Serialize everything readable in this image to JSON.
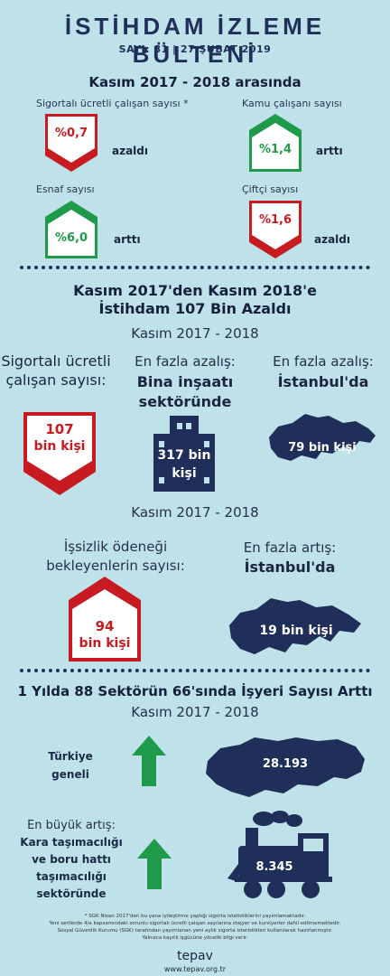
{
  "header": {
    "title": "İSTİHDAM İZLEME BÜLTENİ",
    "subtitle": "SAYI: 81 | 27 ŞUBAT 2019"
  },
  "section1": {
    "heading": "Kasım 2017 - 2018 arasında",
    "items": [
      {
        "label": "Sigortalı ücretli çalışan sayısı *",
        "value": "%0,7",
        "change": "azaldı",
        "direction": "down"
      },
      {
        "label": "Kamu çalışanı sayısı",
        "value": "%1,4",
        "change": "arttı",
        "direction": "up"
      },
      {
        "label": "Esnaf sayısı",
        "value": "%6,0",
        "change": "arttı",
        "direction": "up"
      },
      {
        "label": "Çiftçi sayısı",
        "value": "%1,6",
        "change": "azaldı",
        "direction": "down"
      }
    ]
  },
  "section2": {
    "heading_line1": "Kasım 2017'den Kasım 2018'e",
    "heading_line2": "İstihdam 107 Bin Azaldı",
    "period": "Kasım 2017 - 2018",
    "col1_line1": "Sigortalı ücretli",
    "col1_line2": "çalışan sayısı:",
    "col2_line1": "En fazla azalış:",
    "col2_line2": "Bina inşaatı",
    "col2_line3": "sektöründe",
    "col3_line1": "En fazla azalış:",
    "col3_line2": "İstanbul'da",
    "value1_line1": "107",
    "value1_line2": "bin kişi",
    "value2_line1": "317 bin",
    "value2_line2": "kişi",
    "value3": "79 bin kişi"
  },
  "section3": {
    "period": "Kasım 2017 - 2018",
    "left_line1": "İşsizlik ödeneği",
    "left_line2": "bekleyenlerin sayısı:",
    "right_line1": "En fazla artış:",
    "right_line2": "İstanbul'da",
    "value1_line1": "94",
    "value1_line2": "bin kişi",
    "value2": "19 bin kişi"
  },
  "section4": {
    "heading": "1 Yılda 88 Sektörün 66'sında İşyeri Sayısı Arttı",
    "period": "Kasım 2017 - 2018",
    "row1_line1": "Türkiye",
    "row1_line2": "geneli",
    "row1_value": "28.193",
    "row2_line1": "En büyük artış:",
    "row2_line2": "Kara taşımacılığı",
    "row2_line3": "ve boru hattı",
    "row2_line4": "taşımacılığı",
    "row2_line5": "sektöründe",
    "row2_value": "8.345"
  },
  "footer": {
    "note1": "* SGK Nisan 2017'den bu yana iyileştirme yaptığı sigorta istatistiklerini yayımlamaktadır.",
    "note2": "Yeni serilerde 4/a kapsamındaki zorunlu sigortalı ücretli çalışan sayılarına stajyer ve kursiyerler dahil edilmemektedir.",
    "note3": "Sosyal Güvenlik Kurumu (SGK) tarafından yayımlanan yeni aylık sigorta istatistikleri kullanılarak hazırlanmıştır.",
    "note4": "Yalnızca kayıtlı işgücüne yönelik bilgi verir.",
    "brand": "tepav",
    "url": "www.tepav.org.tr"
  },
  "colors": {
    "background": "#bfe1e9",
    "red": "#c71b21",
    "green": "#1f9a4a",
    "navy": "#1f2f5a"
  }
}
